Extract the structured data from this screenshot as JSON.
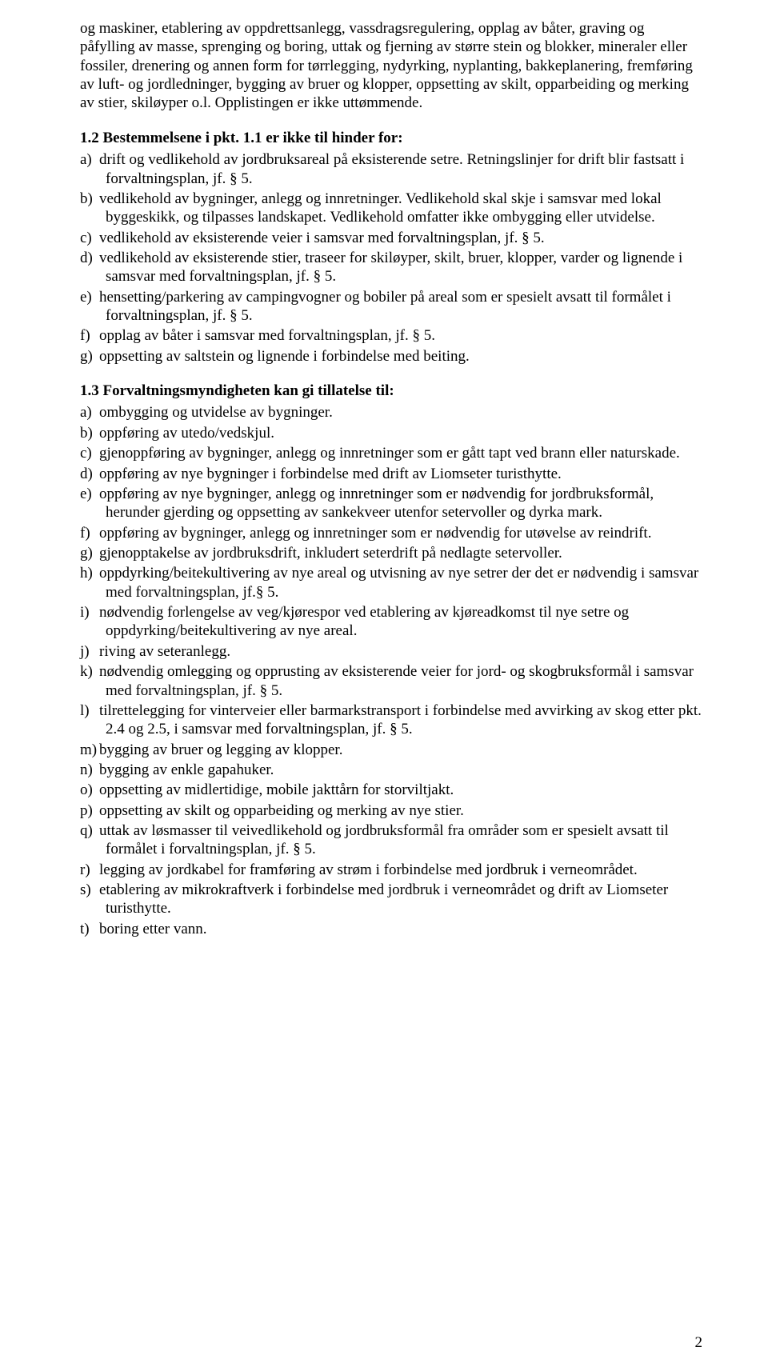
{
  "intro": "og maskiner, etablering av oppdrettsanlegg, vassdragsregulering, opplag av båter, graving og påfylling av masse, sprenging og boring, uttak og fjerning av større stein og blokker, mineraler eller fossiler, drenering og annen form for tørrlegging, nydyrking, nyplanting, bakkeplanering, fremføring av luft- og jordledninger, bygging av bruer og klopper, oppsetting av skilt, opparbeiding og merking av stier, skiløyper o.l. Opplistingen er ikke uttømmende.",
  "section12": {
    "heading": "1.2 Bestemmelsene i pkt. 1.1 er ikke til hinder for:",
    "items": [
      {
        "m": "a)",
        "t": "drift og vedlikehold av jordbruksareal på eksisterende setre. Retningslinjer for drift blir fastsatt i forvaltningsplan, jf. § 5."
      },
      {
        "m": "b)",
        "t": "vedlikehold av bygninger, anlegg og innretninger. Vedlikehold skal skje i samsvar med lokal byggeskikk, og tilpasses landskapet. Vedlikehold omfatter ikke ombygging eller utvidelse."
      },
      {
        "m": "c)",
        "t": "vedlikehold av eksisterende veier i samsvar med forvaltningsplan, jf. § 5."
      },
      {
        "m": "d)",
        "t": "vedlikehold av eksisterende stier, traseer for skiløyper, skilt, bruer, klopper, varder og lignende i samsvar med forvaltningsplan, jf. § 5."
      },
      {
        "m": "e)",
        "t": "hensetting/parkering av campingvogner og bobiler på areal som er spesielt avsatt til formålet i forvaltningsplan, jf. § 5."
      },
      {
        "m": "f)",
        "t": "opplag av båter i samsvar med forvaltningsplan, jf. § 5."
      },
      {
        "m": "g)",
        "t": "oppsetting av saltstein og lignende i forbindelse med beiting."
      }
    ]
  },
  "section13": {
    "heading": "1.3 Forvaltningsmyndigheten kan gi tillatelse til:",
    "items": [
      {
        "m": "a)",
        "t": "ombygging og utvidelse av bygninger."
      },
      {
        "m": "b)",
        "t": "oppføring av utedo/vedskjul."
      },
      {
        "m": "c)",
        "t": "gjenoppføring av bygninger, anlegg og innretninger som er gått tapt ved brann eller naturskade."
      },
      {
        "m": "d)",
        "t": "oppføring av nye bygninger i forbindelse med drift av Liomseter turisthytte."
      },
      {
        "m": "e)",
        "t": "oppføring av nye bygninger, anlegg og innretninger som er nødvendig for jordbruksformål, herunder gjerding og oppsetting av sankekveer utenfor setervoller og dyrka mark."
      },
      {
        "m": "f)",
        "t": "oppføring av bygninger, anlegg og innretninger som er nødvendig for utøvelse av reindrift."
      },
      {
        "m": "g)",
        "t": "gjenopptakelse av jordbruksdrift, inkludert seterdrift på nedlagte setervoller."
      },
      {
        "m": "h)",
        "t": "oppdyrking/beitekultivering av nye areal og utvisning av nye setrer der det er nødvendig i samsvar med forvaltningsplan, jf.§ 5."
      },
      {
        "m": "i)",
        "t": "nødvendig forlengelse av veg/kjørespor ved etablering av kjøreadkomst til nye setre og oppdyrking/beitekultivering av nye areal."
      },
      {
        "m": "j)",
        "t": "riving av seteranlegg."
      },
      {
        "m": "k)",
        "t": "nødvendig omlegging og opprusting av eksisterende veier for jord- og skogbruksformål i samsvar med forvaltningsplan, jf. § 5."
      },
      {
        "m": "l)",
        "t": "tilrettelegging for vinterveier eller barmarkstransport i forbindelse med avvirking av skog etter pkt. 2.4 og 2.5, i samsvar med forvaltningsplan, jf. § 5."
      },
      {
        "m": "m)",
        "t": "bygging av bruer og legging av klopper."
      },
      {
        "m": "n)",
        "t": "bygging av enkle gapahuker."
      },
      {
        "m": "o)",
        "t": "oppsetting av midlertidige, mobile jakttårn for storviltjakt."
      },
      {
        "m": "p)",
        "t": "oppsetting av skilt og opparbeiding og merking av nye stier."
      },
      {
        "m": "q)",
        "t": "uttak av løsmasser til veivedlikehold og jordbruksformål fra områder som er spesielt avsatt til formålet i forvaltningsplan, jf. § 5."
      },
      {
        "m": "r)",
        "t": "legging av jordkabel for framføring av strøm i forbindelse med jordbruk i verneområdet."
      },
      {
        "m": "s)",
        "t": "etablering av mikrokraftverk i forbindelse med jordbruk i verneområdet og drift av Liomseter turisthytte."
      },
      {
        "m": "t)",
        "t": "boring etter vann."
      }
    ]
  },
  "pageNumber": "2"
}
